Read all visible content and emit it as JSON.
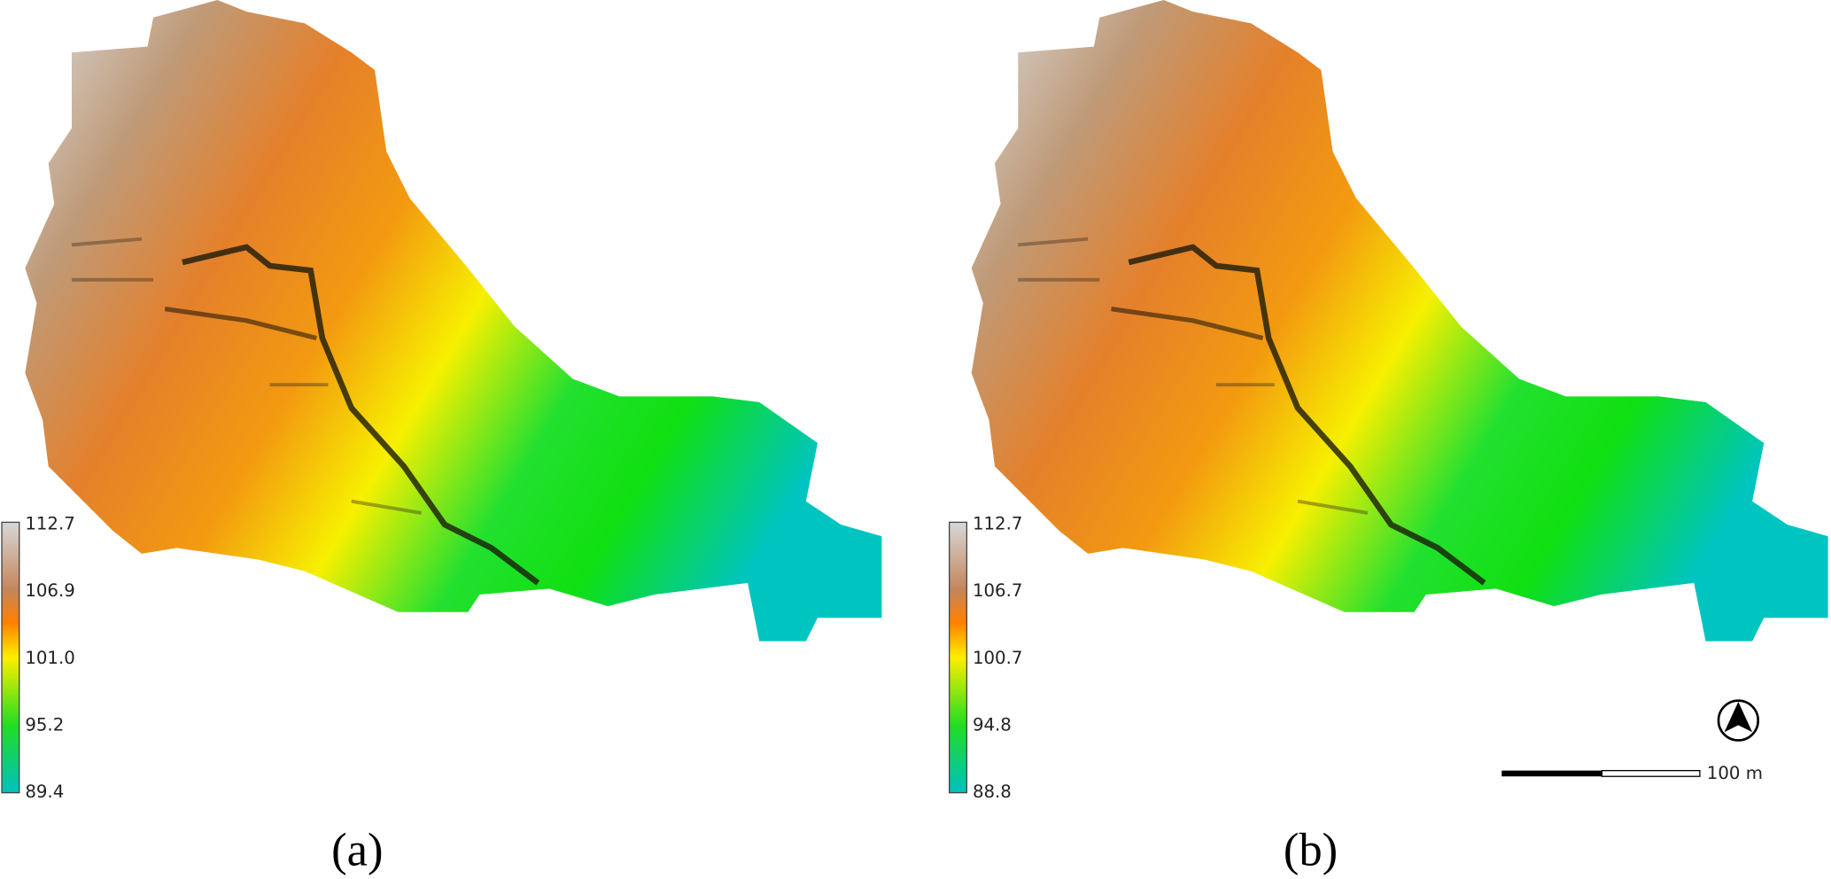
{
  "panels": [
    {
      "caption": "(a)",
      "legend": [
        "112.7",
        "106.9",
        "101.0",
        "95.2",
        "89.4"
      ]
    },
    {
      "caption": "(b)",
      "legend": [
        "112.7",
        "106.7",
        "100.7",
        "94.8",
        "88.8"
      ]
    }
  ],
  "scale_bar": "100 m",
  "north_arrow": "N"
}
